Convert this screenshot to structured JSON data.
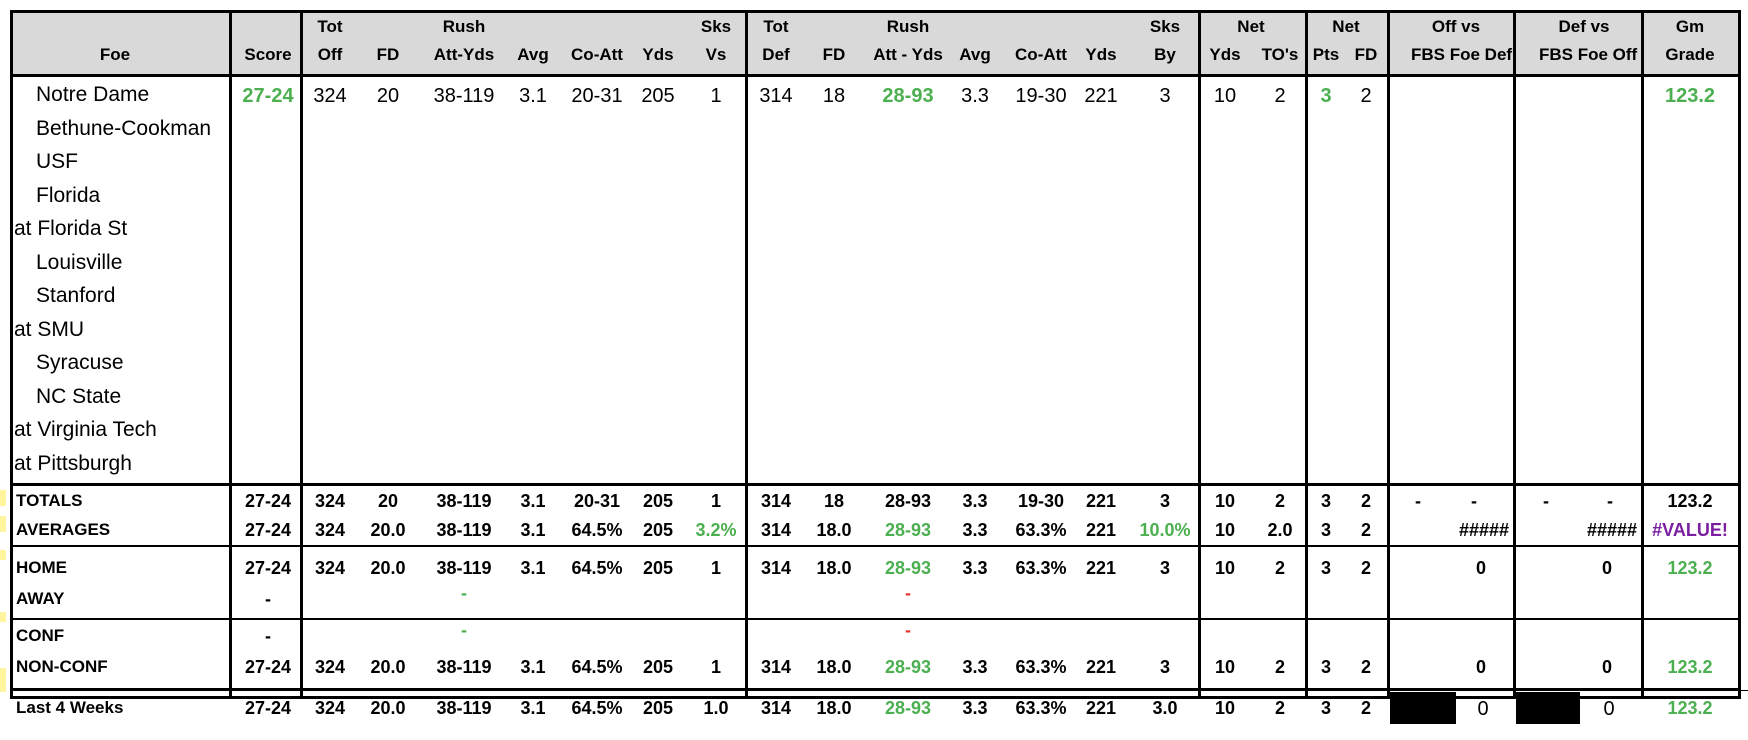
{
  "columns": [
    {
      "key": "foe",
      "top": "",
      "bottom": "Foe"
    },
    {
      "key": "score",
      "top": "",
      "bottom": "Score"
    },
    {
      "key": "tot_off",
      "top": "Tot",
      "bottom": "Off"
    },
    {
      "key": "fd_off",
      "top": "",
      "bottom": "FD"
    },
    {
      "key": "rush_off",
      "top": "Rush",
      "bottom": "Att-Yds"
    },
    {
      "key": "avg_off",
      "top": "",
      "bottom": "Avg"
    },
    {
      "key": "coatt_off",
      "top": "",
      "bottom": "Co-Att"
    },
    {
      "key": "yds_off",
      "top": "",
      "bottom": "Yds"
    },
    {
      "key": "sks_vs",
      "top": "Sks",
      "bottom": "Vs"
    },
    {
      "key": "tot_def",
      "top": "Tot",
      "bottom": "Def"
    },
    {
      "key": "fd_def",
      "top": "",
      "bottom": "FD"
    },
    {
      "key": "rush_def",
      "top": "Rush",
      "bottom": "Att - Yds"
    },
    {
      "key": "avg_def",
      "top": "",
      "bottom": "Avg"
    },
    {
      "key": "coatt_def",
      "top": "",
      "bottom": "Co-Att"
    },
    {
      "key": "yds_def",
      "top": "",
      "bottom": "Yds"
    },
    {
      "key": "sks_by",
      "top": "Sks",
      "bottom": "By"
    },
    {
      "key": "net_yds",
      "top": "Net",
      "bottom": "Yds"
    },
    {
      "key": "net_tos",
      "top": "",
      "bottom": "TO's"
    },
    {
      "key": "net_pts",
      "top": "Net",
      "bottom": "Pts"
    },
    {
      "key": "net_fd",
      "top": "",
      "bottom": "FD"
    },
    {
      "key": "off_vs",
      "top": "Off vs",
      "bottom": "FBS Foe Def"
    },
    {
      "key": "def_vs",
      "top": "Def vs",
      "bottom": "FBS Foe Off"
    },
    {
      "key": "gm_grade",
      "top": "Gm",
      "bottom": "Grade"
    }
  ],
  "games": [
    {
      "foe": "  Notre Dame",
      "score": "27-24",
      "tot_off": "324",
      "fd_off": "20",
      "rush_off": "38-119",
      "avg_off": "3.1",
      "coatt_off": "20-31",
      "yds_off": "205",
      "sks_vs": "1",
      "tot_def": "314",
      "fd_def": "18",
      "rush_def": "28-93",
      "avg_def": "3.3",
      "coatt_def": "19-30",
      "yds_def": "221",
      "sks_by": "3",
      "net_yds": "10",
      "net_tos": "2",
      "net_pts": "3",
      "net_fd": "2",
      "gm_grade": "123.2"
    },
    {
      "foe": "  Bethune-Cookman"
    },
    {
      "foe": "  USF"
    },
    {
      "foe": "  Florida"
    },
    {
      "foe": "at Florida St"
    },
    {
      "foe": "  Louisville"
    },
    {
      "foe": "  Stanford"
    },
    {
      "foe": "at SMU"
    },
    {
      "foe": "  Syracuse"
    },
    {
      "foe": "  NC State"
    },
    {
      "foe": "at Virginia Tech"
    },
    {
      "foe": "at Pittsburgh"
    }
  ],
  "summary": {
    "totals": {
      "label": "TOTALS",
      "score": "27-24",
      "tot_off": "324",
      "fd_off": "20",
      "rush_off": "38-119",
      "avg_off": "3.1",
      "coatt_off": "20-31",
      "yds_off": "205",
      "sks_vs": "1",
      "tot_def": "314",
      "fd_def": "18",
      "rush_def": "28-93",
      "avg_def": "3.3",
      "coatt_def": "19-30",
      "yds_def": "221",
      "sks_by": "3",
      "net_yds": "10",
      "net_tos": "2",
      "net_pts": "3",
      "net_fd": "2",
      "off_vs_a": "-",
      "off_vs_b": "-",
      "def_vs_a": "-",
      "def_vs_b": "-",
      "gm_grade": "123.2"
    },
    "averages": {
      "label": "AVERAGES",
      "score": "27-24",
      "tot_off": "324",
      "fd_off": "20.0",
      "rush_off": "38-119",
      "avg_off": "3.1",
      "coatt_off": "64.5%",
      "yds_off": "205",
      "sks_vs": "3.2%",
      "tot_def": "314",
      "fd_def": "18.0",
      "rush_def": "28-93",
      "avg_def": "3.3",
      "coatt_def": "63.3%",
      "yds_def": "221",
      "sks_by": "10.0%",
      "net_yds": "10",
      "net_tos": "2.0",
      "net_pts": "3",
      "net_fd": "2",
      "off_vs": "#####",
      "def_vs": "#####",
      "gm_grade": "#VALUE!"
    },
    "home": {
      "label": "HOME",
      "score": "27-24",
      "tot_off": "324",
      "fd_off": "20.0",
      "rush_off": "38-119",
      "avg_off": "3.1",
      "coatt_off": "64.5%",
      "yds_off": "205",
      "sks_vs": "1",
      "tot_def": "314",
      "fd_def": "18.0",
      "rush_def": "28-93",
      "avg_def": "3.3",
      "coatt_def": "63.3%",
      "yds_def": "221",
      "sks_by": "3",
      "net_yds": "10",
      "net_tos": "2",
      "net_pts": "3",
      "net_fd": "2",
      "off_vs": "0",
      "def_vs": "0",
      "gm_grade": "123.2"
    },
    "away": {
      "label": "AWAY",
      "score": "-",
      "rush_off": "-",
      "rush_def": "-"
    },
    "conf": {
      "label": "CONF",
      "score": "-",
      "rush_off": "-",
      "rush_def": "-"
    },
    "nonconf": {
      "label": "NON-CONF",
      "score": "27-24",
      "tot_off": "324",
      "fd_off": "20.0",
      "rush_off": "38-119",
      "avg_off": "3.1",
      "coatt_off": "64.5%",
      "yds_off": "205",
      "sks_vs": "1",
      "tot_def": "314",
      "fd_def": "18.0",
      "rush_def": "28-93",
      "avg_def": "3.3",
      "coatt_def": "63.3%",
      "yds_def": "221",
      "sks_by": "3",
      "net_yds": "10",
      "net_tos": "2",
      "net_pts": "3",
      "net_fd": "2",
      "off_vs": "0",
      "def_vs": "0",
      "gm_grade": "123.2"
    },
    "last4": {
      "label": "Last 4 Weeks",
      "score": "27-24",
      "tot_off": "324",
      "fd_off": "20.0",
      "rush_off": "38-119",
      "avg_off": "3.1",
      "coatt_off": "64.5%",
      "yds_off": "205",
      "sks_vs": "1.0",
      "tot_def": "314",
      "fd_def": "18.0",
      "rush_def": "28-93",
      "avg_def": "3.3",
      "coatt_def": "63.3%",
      "yds_def": "221",
      "sks_by": "3.0",
      "net_yds": "10",
      "net_tos": "2",
      "net_pts": "3",
      "net_fd": "2",
      "off_vs": "0",
      "def_vs": "0",
      "gm_grade": "123.2"
    }
  },
  "colors": {
    "header_bg": "#d9d9d9",
    "good": "#4caf50",
    "bad": "#e53935",
    "error": "#7b1fa2"
  }
}
